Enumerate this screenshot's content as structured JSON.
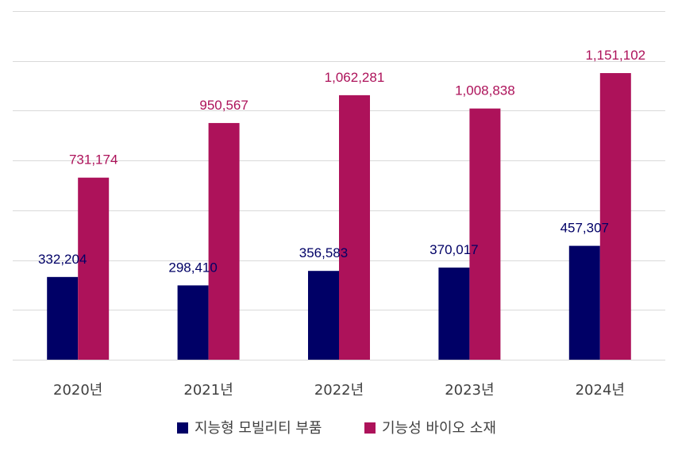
{
  "chart_data": {
    "type": "bar",
    "categories": [
      "2020년",
      "2021년",
      "2022년",
      "2023년",
      "2024년"
    ],
    "series": [
      {
        "name": "지능형 모빌리티 부품",
        "color": "#000066",
        "values": [
          332204,
          298410,
          356583,
          370017,
          457307
        ],
        "labels": [
          "332,204",
          "298,410",
          "356,583",
          "370,017",
          "457,307"
        ]
      },
      {
        "name": "기능성 바이오 소재",
        "color": "#ad125a",
        "values": [
          731174,
          950567,
          1062281,
          1008838,
          1151102
        ],
        "labels": [
          "731,174",
          "950,567",
          "1,062,281",
          "1,008,838",
          "1,151,102"
        ]
      }
    ],
    "ylim": [
      0,
      1400000
    ],
    "grid": true,
    "legend_position": "bottom"
  }
}
